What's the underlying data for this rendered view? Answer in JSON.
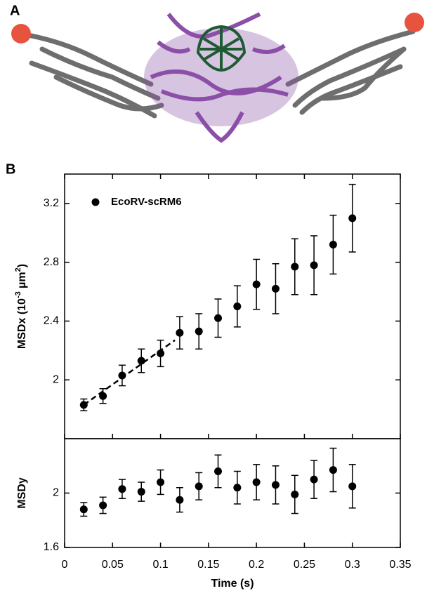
{
  "figure": {
    "panels": [
      "A",
      "B"
    ]
  },
  "chart_data": [
    {
      "type": "scatter",
      "ylabel": [
        "MSDx (10",
        "-3",
        " µm",
        "2",
        ")"
      ],
      "xlim": [
        0,
        0.35
      ],
      "ylim": [
        1.6,
        3.4
      ],
      "yticks": [
        2,
        2.4,
        2.8,
        3.2
      ],
      "legend": "top-left",
      "series": [
        {
          "name": "EcoRV-scRM6",
          "color": "#000000",
          "x": [
            0.02,
            0.04,
            0.06,
            0.08,
            0.1,
            0.12,
            0.14,
            0.16,
            0.18,
            0.2,
            0.22,
            0.24,
            0.26,
            0.28,
            0.3
          ],
          "values": [
            1.83,
            1.89,
            2.03,
            2.13,
            2.18,
            2.32,
            2.33,
            2.42,
            2.5,
            2.65,
            2.62,
            2.77,
            2.78,
            2.92,
            3.1
          ],
          "errors": [
            0.04,
            0.05,
            0.07,
            0.08,
            0.09,
            0.11,
            0.12,
            0.13,
            0.14,
            0.17,
            0.17,
            0.19,
            0.2,
            0.2,
            0.23
          ]
        }
      ],
      "fit_line": {
        "x": [
          0.02,
          0.115
        ],
        "values": [
          1.83,
          2.27
        ],
        "style": "dashed"
      }
    },
    {
      "type": "scatter",
      "ylabel": [
        "MSDy"
      ],
      "xlabel": "Time (s)",
      "xlim": [
        0,
        0.35
      ],
      "xticks": [
        0,
        0.05,
        0.1,
        0.15,
        0.2,
        0.25,
        0.3,
        0.35
      ],
      "ylim": [
        1.6,
        2.4
      ],
      "yticks": [
        1.6,
        2
      ],
      "series": [
        {
          "color": "#000000",
          "x": [
            0.02,
            0.04,
            0.06,
            0.08,
            0.1,
            0.12,
            0.14,
            0.16,
            0.18,
            0.2,
            0.22,
            0.24,
            0.26,
            0.28,
            0.3
          ],
          "values": [
            1.88,
            1.91,
            2.03,
            2.01,
            2.08,
            1.95,
            2.05,
            2.16,
            2.04,
            2.08,
            2.06,
            1.99,
            2.1,
            2.17,
            2.05
          ],
          "errors": [
            0.05,
            0.06,
            0.07,
            0.07,
            0.09,
            0.09,
            0.1,
            0.12,
            0.12,
            0.13,
            0.14,
            0.14,
            0.14,
            0.16,
            0.16
          ]
        }
      ]
    }
  ]
}
